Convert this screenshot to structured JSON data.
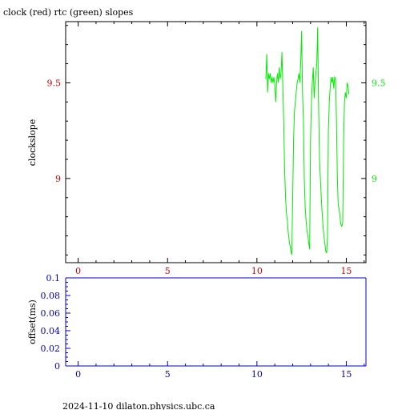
{
  "title": "clock (red) rtc (green) slopes",
  "footer": "2024-11-10  dilaton.physics.ubc.ca",
  "colors": {
    "axis": "#000000",
    "clock": "#cc0000",
    "rtc": "#00ee00",
    "offset_axis": "#0000cc"
  },
  "chart_data": [
    {
      "type": "line",
      "ylabel": "clockslope",
      "xlim": [
        -0.7,
        16.1
      ],
      "ylim": [
        8.56,
        9.82
      ],
      "x_ticks": [
        0,
        5,
        10,
        15
      ],
      "y_ticks_left": [
        9,
        9.5
      ],
      "y_ticks_right": [
        9,
        9.5
      ],
      "series": [
        {
          "color": "rtc",
          "points": [
            [
              10.5,
              9.52
            ],
            [
              10.55,
              9.65
            ],
            [
              10.6,
              9.45
            ],
            [
              10.65,
              9.55
            ],
            [
              10.7,
              9.52
            ],
            [
              10.75,
              9.55
            ],
            [
              10.8,
              9.5
            ],
            [
              10.85,
              9.53
            ],
            [
              10.9,
              9.5
            ],
            [
              10.95,
              9.53
            ],
            [
              11.0,
              9.49
            ],
            [
              11.05,
              9.4
            ],
            [
              11.1,
              9.5
            ],
            [
              11.15,
              9.55
            ],
            [
              11.2,
              9.5
            ],
            [
              11.25,
              9.58
            ],
            [
              11.3,
              9.52
            ],
            [
              11.35,
              9.55
            ],
            [
              11.4,
              9.66
            ],
            [
              11.45,
              9.48
            ],
            [
              11.5,
              9.3
            ],
            [
              11.55,
              9.05
            ],
            [
              11.6,
              8.9
            ],
            [
              11.65,
              8.82
            ],
            [
              11.7,
              8.78
            ],
            [
              11.75,
              8.72
            ],
            [
              11.8,
              8.68
            ],
            [
              11.85,
              8.65
            ],
            [
              11.9,
              8.62
            ],
            [
              11.95,
              8.6
            ],
            [
              12.0,
              8.9
            ],
            [
              12.05,
              9.2
            ],
            [
              12.1,
              9.35
            ],
            [
              12.15,
              9.4
            ],
            [
              12.2,
              9.45
            ],
            [
              12.25,
              9.5
            ],
            [
              12.3,
              9.52
            ],
            [
              12.35,
              9.55
            ],
            [
              12.4,
              9.5
            ],
            [
              12.45,
              9.6
            ],
            [
              12.5,
              9.77
            ],
            [
              12.55,
              9.45
            ],
            [
              12.6,
              9.3
            ],
            [
              12.65,
              9.0
            ],
            [
              12.7,
              8.85
            ],
            [
              12.75,
              8.78
            ],
            [
              12.8,
              8.73
            ],
            [
              12.85,
              8.7
            ],
            [
              12.9,
              8.66
            ],
            [
              12.95,
              8.63
            ],
            [
              13.0,
              9.2
            ],
            [
              13.05,
              9.4
            ],
            [
              13.1,
              9.5
            ],
            [
              13.15,
              9.58
            ],
            [
              13.2,
              9.42
            ],
            [
              13.25,
              9.5
            ],
            [
              13.3,
              9.55
            ],
            [
              13.35,
              9.6
            ],
            [
              13.4,
              9.79
            ],
            [
              13.45,
              9.4
            ],
            [
              13.5,
              9.1
            ],
            [
              13.55,
              9.0
            ],
            [
              13.6,
              8.9
            ],
            [
              13.65,
              8.82
            ],
            [
              13.7,
              8.75
            ],
            [
              13.75,
              8.7
            ],
            [
              13.8,
              8.66
            ],
            [
              13.85,
              8.62
            ],
            [
              13.9,
              8.61
            ],
            [
              13.95,
              8.7
            ],
            [
              14.0,
              9.25
            ],
            [
              14.05,
              9.4
            ],
            [
              14.1,
              9.48
            ],
            [
              14.15,
              9.53
            ],
            [
              14.2,
              9.5
            ],
            [
              14.25,
              9.53
            ],
            [
              14.3,
              9.47
            ],
            [
              14.35,
              9.53
            ],
            [
              14.4,
              9.52
            ],
            [
              14.45,
              9.3
            ],
            [
              14.5,
              9.0
            ],
            [
              14.55,
              8.86
            ],
            [
              14.6,
              8.84
            ],
            [
              14.65,
              8.8
            ],
            [
              14.7,
              8.76
            ],
            [
              14.75,
              8.75
            ],
            [
              14.8,
              8.77
            ],
            [
              14.85,
              9.2
            ],
            [
              14.9,
              9.4
            ],
            [
              14.95,
              9.45
            ],
            [
              15.0,
              9.42
            ],
            [
              15.05,
              9.5
            ],
            [
              15.1,
              9.48
            ],
            [
              15.15,
              9.44
            ]
          ]
        }
      ]
    },
    {
      "type": "line",
      "ylabel": "offset(ms)",
      "xlim": [
        -0.7,
        16.1
      ],
      "ylim": [
        0,
        0.1
      ],
      "x_ticks": [
        0,
        5,
        10,
        15
      ],
      "y_ticks": [
        0,
        0.02,
        0.04,
        0.06,
        0.08,
        0.1
      ],
      "series": []
    }
  ]
}
